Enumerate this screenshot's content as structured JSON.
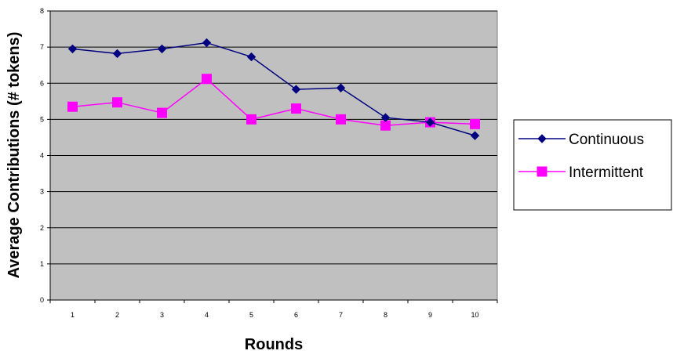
{
  "chart_data": {
    "type": "line",
    "title": "",
    "xlabel": "Rounds",
    "ylabel": "Average Contributions (# tokens)",
    "categories": [
      "1",
      "2",
      "3",
      "4",
      "5",
      "6",
      "7",
      "8",
      "9",
      "10"
    ],
    "y_ticks": [
      "0",
      "1",
      "2",
      "3",
      "4",
      "5",
      "6",
      "7",
      "8"
    ],
    "ylim": [
      0,
      8
    ],
    "grid": "horizontal",
    "plot_background": "#c0c0c0",
    "legend_position": "right",
    "series": [
      {
        "name": "Continuous",
        "marker": "diamond",
        "color": "#000080",
        "values": [
          6.95,
          6.82,
          6.95,
          7.12,
          6.73,
          5.83,
          5.87,
          5.05,
          4.92,
          4.55
        ]
      },
      {
        "name": "Intermittent",
        "marker": "square",
        "color": "#ff00ff",
        "values": [
          5.35,
          5.47,
          5.18,
          6.12,
          5.0,
          5.3,
          5.0,
          4.83,
          4.92,
          4.87
        ]
      }
    ]
  }
}
